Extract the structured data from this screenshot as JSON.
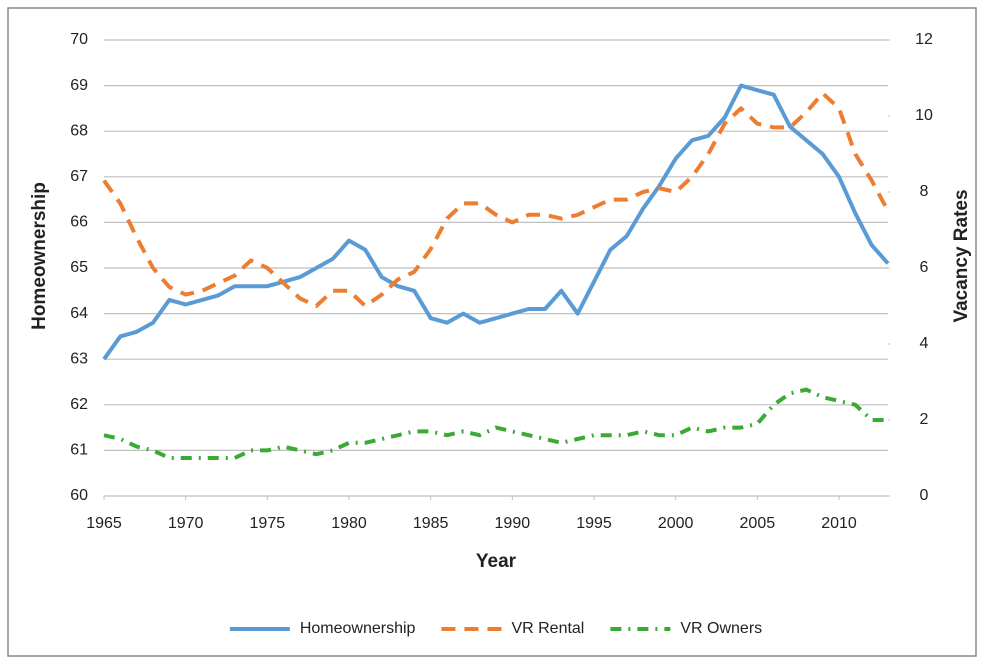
{
  "chart_data": {
    "type": "line",
    "x": [
      1965,
      1966,
      1967,
      1968,
      1969,
      1970,
      1971,
      1972,
      1973,
      1974,
      1975,
      1976,
      1977,
      1978,
      1979,
      1980,
      1981,
      1982,
      1983,
      1984,
      1985,
      1986,
      1987,
      1988,
      1989,
      1990,
      1991,
      1992,
      1993,
      1994,
      1995,
      1996,
      1997,
      1998,
      1999,
      2000,
      2001,
      2002,
      2003,
      2004,
      2005,
      2006,
      2007,
      2008,
      2009,
      2010,
      2011,
      2012,
      2013
    ],
    "x_label": "Year",
    "y_label": "Homeownership",
    "y2_label": "Vacancy Rates",
    "xlim": [
      1965,
      2013
    ],
    "xticks": [
      1965,
      1970,
      1975,
      1980,
      1985,
      1990,
      1995,
      2000,
      2005,
      2010
    ],
    "ylim": [
      60,
      70
    ],
    "yticks": [
      60,
      61,
      62,
      63,
      64,
      65,
      66,
      67,
      68,
      69,
      70
    ],
    "y2lim": [
      0,
      12
    ],
    "y2ticks": [
      0,
      2,
      4,
      6,
      8,
      10,
      12
    ],
    "grid": true,
    "legend": "bottom",
    "series": [
      {
        "name": "Homeownership",
        "color": "#5b9bd5",
        "style": "solid",
        "values": [
          63.0,
          63.5,
          63.6,
          63.8,
          64.3,
          64.2,
          64.3,
          64.4,
          64.6,
          64.6,
          64.6,
          64.7,
          64.8,
          65.0,
          65.2,
          65.6,
          65.4,
          64.8,
          64.6,
          64.5,
          63.9,
          63.8,
          64.0,
          63.8,
          63.9,
          64.0,
          64.1,
          64.1,
          64.5,
          64.0,
          64.7,
          65.4,
          65.7,
          66.3,
          66.8,
          67.4,
          67.8,
          67.9,
          68.3,
          69.0,
          68.9,
          68.8,
          68.1,
          67.8,
          67.5,
          67.0,
          66.2,
          65.5,
          65.1
        ]
      },
      {
        "name": "VR Rental",
        "color": "#ed7d31",
        "style": "dash",
        "axis": "y2",
        "values": [
          8.3,
          7.7,
          6.8,
          6.0,
          5.5,
          5.3,
          5.4,
          5.6,
          5.8,
          6.2,
          6.0,
          5.6,
          5.2,
          5.0,
          5.4,
          5.4,
          5.0,
          5.3,
          5.7,
          5.9,
          6.5,
          7.3,
          7.7,
          7.7,
          7.4,
          7.2,
          7.4,
          7.4,
          7.3,
          7.4,
          7.6,
          7.8,
          7.8,
          8.0,
          8.1,
          8.0,
          8.4,
          9.0,
          9.8,
          10.2,
          9.8,
          9.7,
          9.7,
          10.1,
          10.6,
          10.2,
          9.0,
          8.3,
          7.5
        ]
      },
      {
        "name": "VR Owners",
        "color": "#3aaa35",
        "style": "dashdot",
        "axis": "y2",
        "values": [
          1.6,
          1.5,
          1.3,
          1.2,
          1.0,
          1.0,
          1.0,
          1.0,
          1.0,
          1.2,
          1.2,
          1.3,
          1.2,
          1.1,
          1.2,
          1.4,
          1.4,
          1.5,
          1.6,
          1.7,
          1.7,
          1.6,
          1.7,
          1.6,
          1.8,
          1.7,
          1.6,
          1.5,
          1.4,
          1.5,
          1.6,
          1.6,
          1.6,
          1.7,
          1.6,
          1.6,
          1.8,
          1.7,
          1.8,
          1.8,
          1.9,
          2.4,
          2.7,
          2.8,
          2.6,
          2.5,
          2.4,
          2.0,
          2.0
        ]
      }
    ]
  }
}
